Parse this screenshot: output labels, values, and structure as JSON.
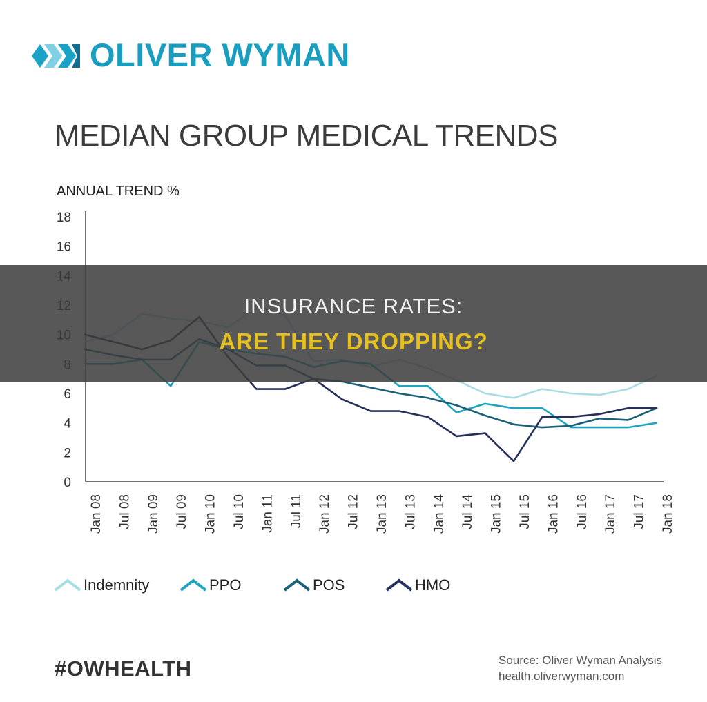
{
  "brand": {
    "name": "OLIVER WYMAN",
    "logo_colors": [
      "#1aa2c7",
      "#7fd0e4",
      "#0d6f91"
    ]
  },
  "hashtag": "#OWHEALTH",
  "source": {
    "line1": "Source: Oliver Wyman Analysis",
    "line2": "health.oliverwyman.com"
  },
  "banner": {
    "line1": "INSURANCE RATES:",
    "line2": "ARE THEY DROPPING?",
    "line2_color": "#e5c01e"
  },
  "chart_data": {
    "type": "line",
    "title": "MEDIAN GROUP MEDICAL TRENDS",
    "ylabel": "ANNUAL TREND %",
    "xlabel": "",
    "ylim": [
      0,
      18
    ],
    "yticks": [
      0,
      2,
      4,
      6,
      8,
      10,
      12,
      14,
      16,
      18
    ],
    "grid": false,
    "legend_position": "bottom",
    "categories": [
      "Jan 08",
      "Jul 08",
      "Jan 09",
      "Jul 09",
      "Jan 10",
      "Jul 10",
      "Jan 11",
      "Jul 11",
      "Jan 12",
      "Jul 12",
      "Jan 13",
      "Jul 13",
      "Jan 14",
      "Jul 14",
      "Jan 15",
      "Jul 15",
      "Jan 16",
      "Jul 16",
      "Jan 17",
      "Jul 17",
      "Jan 18"
    ],
    "series": [
      {
        "name": "Indemnity",
        "color": "#a8dde4",
        "values": [
          9.5,
          10.0,
          11.4,
          11.1,
          10.9,
          10.5,
          11.8,
          11.3,
          8.2,
          8.3,
          7.8,
          8.3,
          7.7,
          6.9,
          6.0,
          5.7,
          6.3,
          6.0,
          5.9,
          6.3,
          7.2
        ]
      },
      {
        "name": "PPO",
        "color": "#1ea5bd",
        "values": [
          8.0,
          8.0,
          8.3,
          6.5,
          9.5,
          9.0,
          8.7,
          8.5,
          7.8,
          8.2,
          8.0,
          6.5,
          6.5,
          4.7,
          5.3,
          5.0,
          5.0,
          3.7,
          3.7,
          3.7,
          4.0
        ]
      },
      {
        "name": "POS",
        "color": "#1a5f78",
        "values": [
          9.0,
          8.6,
          8.3,
          8.3,
          9.7,
          9.0,
          7.9,
          7.9,
          7.0,
          6.8,
          6.4,
          6.0,
          5.7,
          5.2,
          4.5,
          3.9,
          3.7,
          3.8,
          4.3,
          4.2,
          5.0
        ]
      },
      {
        "name": "HMO",
        "color": "#24305a",
        "values": [
          10.0,
          9.5,
          9.0,
          9.6,
          11.2,
          8.5,
          6.3,
          6.3,
          7.0,
          5.6,
          4.8,
          4.8,
          4.4,
          3.1,
          3.3,
          1.4,
          4.4,
          4.4,
          4.6,
          5.0,
          5.0
        ]
      }
    ]
  }
}
